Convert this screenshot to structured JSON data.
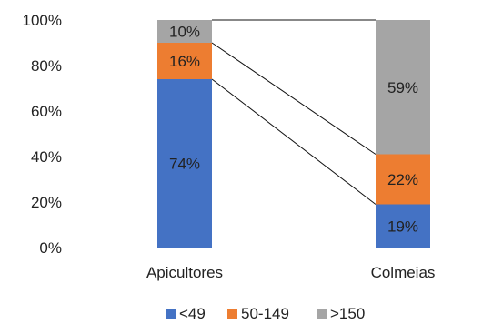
{
  "chart_data": {
    "type": "bar",
    "stacked": true,
    "percent_stacked": true,
    "categories": [
      "Apicultores",
      "Colmeias"
    ],
    "series": [
      {
        "name": "<49",
        "values": [
          74,
          19
        ],
        "labels": [
          "74%",
          "19%"
        ],
        "color": "#4472C4"
      },
      {
        "name": "50-149",
        "values": [
          16,
          22
        ],
        "labels": [
          "16%",
          "22%"
        ],
        "color": "#ED7D31"
      },
      {
        "name": ">150",
        "values": [
          10,
          59
        ],
        "labels": [
          "10%",
          "59%"
        ],
        "color": "#A5A5A5"
      }
    ],
    "yticks": [
      "0%",
      "20%",
      "40%",
      "60%",
      "80%",
      "100%"
    ],
    "ylim": [
      0,
      100
    ],
    "series_lines": true,
    "grid": false,
    "legend_position": "bottom",
    "title": "",
    "xlabel": "",
    "ylabel": ""
  }
}
